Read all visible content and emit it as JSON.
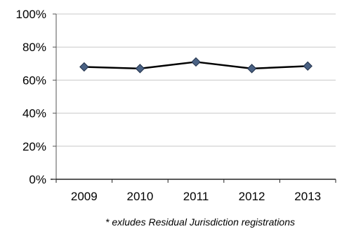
{
  "chart_data": {
    "type": "line",
    "categories": [
      "2009",
      "2010",
      "2011",
      "2012",
      "2013"
    ],
    "series": [
      {
        "values": [
          68,
          67,
          71,
          67,
          68.5
        ]
      }
    ],
    "ylim": [
      0,
      100
    ],
    "y_ticks": [
      "0%",
      "20%",
      "40%",
      "60%",
      "80%",
      "100%"
    ],
    "y_unit": "%",
    "grid": "horizontal",
    "legend": "none",
    "marker": "diamond",
    "colors": {
      "line": "#000000",
      "marker_fill": "#4a6183",
      "marker_stroke": "#1f2f48",
      "grid": "#c8c8c8"
    },
    "footnote": "* exludes Residual Jurisdiction registrations"
  }
}
